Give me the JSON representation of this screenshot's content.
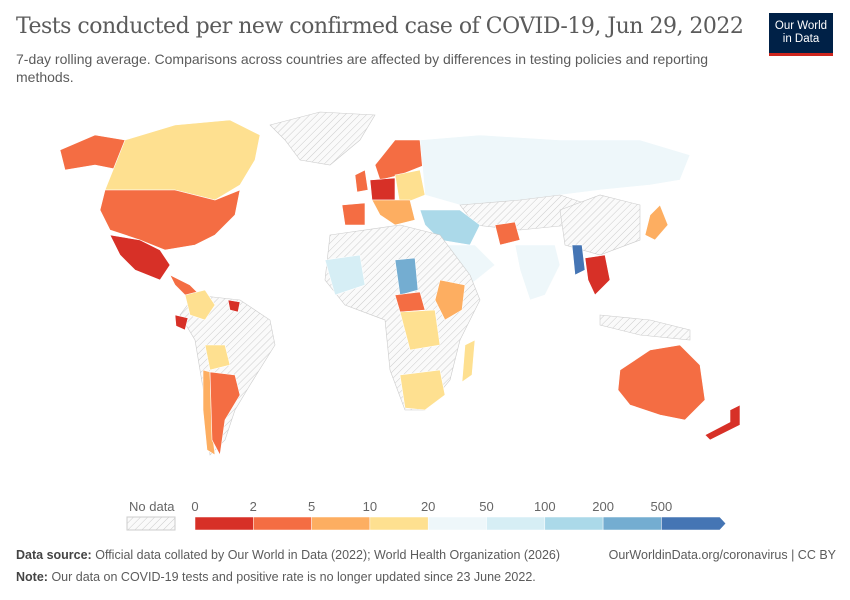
{
  "header": {
    "title": "Tests conducted per new confirmed case of COVID-19, Jun 29, 2022",
    "subtitle": "7-day rolling average. Comparisons across countries are affected by differences in testing policies and reporting methods.",
    "logo": "Our World in Data"
  },
  "legend": {
    "no_data_label": "No data",
    "ticks": [
      "0",
      "2",
      "5",
      "10",
      "20",
      "50",
      "100",
      "200",
      "500"
    ],
    "colors": [
      "#d73027",
      "#f46d43",
      "#fdae61",
      "#fee090",
      "#eef7fa",
      "#d6eef5",
      "#abd9e9",
      "#74add1",
      "#4575b4"
    ]
  },
  "footer": {
    "source_label": "Data source:",
    "source": "Official data collated by Our World in Data (2022); World Health Organization (2026)",
    "url": "OurWorldinData.org/coronavirus | CC BY",
    "note_label": "Note:",
    "note": "Our data on COVID-19 tests and positive rate is no longer updated since 23 June 2022."
  }
}
